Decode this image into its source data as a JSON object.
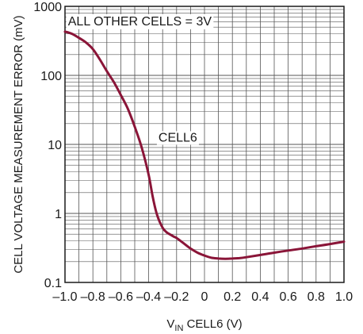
{
  "chart_data": {
    "type": "line",
    "xlabel_main": "V",
    "xlabel_sub": "IN",
    "xlabel_rest": " CELL6 (V)",
    "ylabel": "CELL VOLTAGE MEASUREMENT ERROR (mV)",
    "xlim": [
      -1.0,
      1.0
    ],
    "ylim": [
      0.1,
      1000
    ],
    "yscale": "log",
    "grid": true,
    "x_ticks": [
      -1.0,
      -0.8,
      -0.6,
      -0.4,
      -0.2,
      0,
      0.2,
      0.4,
      0.6,
      0.8,
      1.0
    ],
    "x_tick_labels": [
      "–1.0",
      "–0.8",
      "–0.6",
      "–0.4",
      "–0.2",
      "0",
      "0.2",
      "0.4",
      "0.6",
      "0.8",
      "1.0"
    ],
    "y_ticks": [
      0.1,
      1,
      10,
      100,
      1000
    ],
    "y_tick_labels": [
      "0.1",
      "1",
      "10",
      "100",
      "1000"
    ],
    "annotations": [
      {
        "text": "ALL OTHER CELLS = 3V",
        "at": [
          -0.99,
          750
        ]
      },
      {
        "text": "CELL6",
        "at": [
          -0.33,
          11
        ]
      }
    ],
    "series": [
      {
        "name": "CELL6",
        "color": "#8a1538",
        "x": [
          -1.0,
          -0.95,
          -0.9,
          -0.85,
          -0.8,
          -0.75,
          -0.7,
          -0.65,
          -0.6,
          -0.55,
          -0.5,
          -0.45,
          -0.4,
          -0.37,
          -0.34,
          -0.3,
          -0.27,
          -0.25,
          -0.22,
          -0.2,
          -0.15,
          -0.1,
          -0.05,
          0,
          0.05,
          0.1,
          0.15,
          0.2,
          0.25,
          0.3,
          0.4,
          0.5,
          0.6,
          0.7,
          0.8,
          0.9,
          1.0
        ],
        "y": [
          430,
          400,
          350,
          300,
          240,
          170,
          115,
          80,
          52,
          33,
          18,
          9,
          3.6,
          1.7,
          0.95,
          0.62,
          0.53,
          0.5,
          0.46,
          0.44,
          0.37,
          0.31,
          0.27,
          0.245,
          0.228,
          0.222,
          0.22,
          0.222,
          0.225,
          0.232,
          0.25,
          0.27,
          0.29,
          0.31,
          0.335,
          0.36,
          0.39
        ]
      }
    ]
  }
}
